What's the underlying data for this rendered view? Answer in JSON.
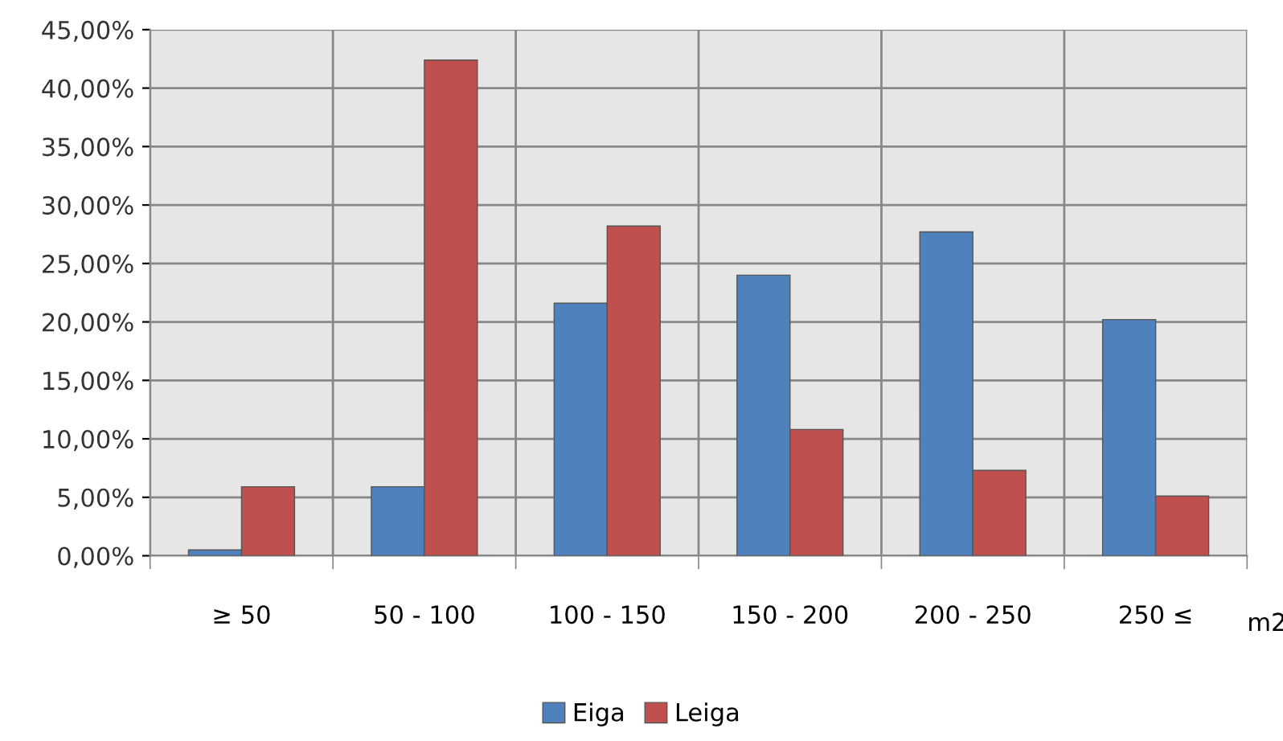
{
  "chart_data": {
    "type": "bar",
    "xlabel": "m2",
    "categories": [
      "≥ 50",
      "50 - 100",
      "100 - 150",
      "150 - 200",
      "200 - 250",
      "250 ≤"
    ],
    "series": [
      {
        "name": "Eiga",
        "color": "#4f81bd",
        "values": [
          0.5,
          5.9,
          21.6,
          24.0,
          27.7,
          20.2
        ]
      },
      {
        "name": "Leiga",
        "color": "#c0504d",
        "values": [
          5.9,
          42.4,
          28.2,
          10.8,
          7.3,
          5.1
        ]
      }
    ],
    "ylim": [
      0,
      45
    ],
    "yticks": [
      {
        "value": 0,
        "label": "0,00%"
      },
      {
        "value": 5,
        "label": "5,00%"
      },
      {
        "value": 10,
        "label": "10,00%"
      },
      {
        "value": 15,
        "label": "15,00%"
      },
      {
        "value": 20,
        "label": "20,00%"
      },
      {
        "value": 25,
        "label": "25,00%"
      },
      {
        "value": 30,
        "label": "30,00%"
      },
      {
        "value": 35,
        "label": "35,00%"
      },
      {
        "value": 40,
        "label": "40,00%"
      },
      {
        "value": 45,
        "label": "45,00%"
      }
    ],
    "grid": true,
    "legend": "bottom"
  }
}
